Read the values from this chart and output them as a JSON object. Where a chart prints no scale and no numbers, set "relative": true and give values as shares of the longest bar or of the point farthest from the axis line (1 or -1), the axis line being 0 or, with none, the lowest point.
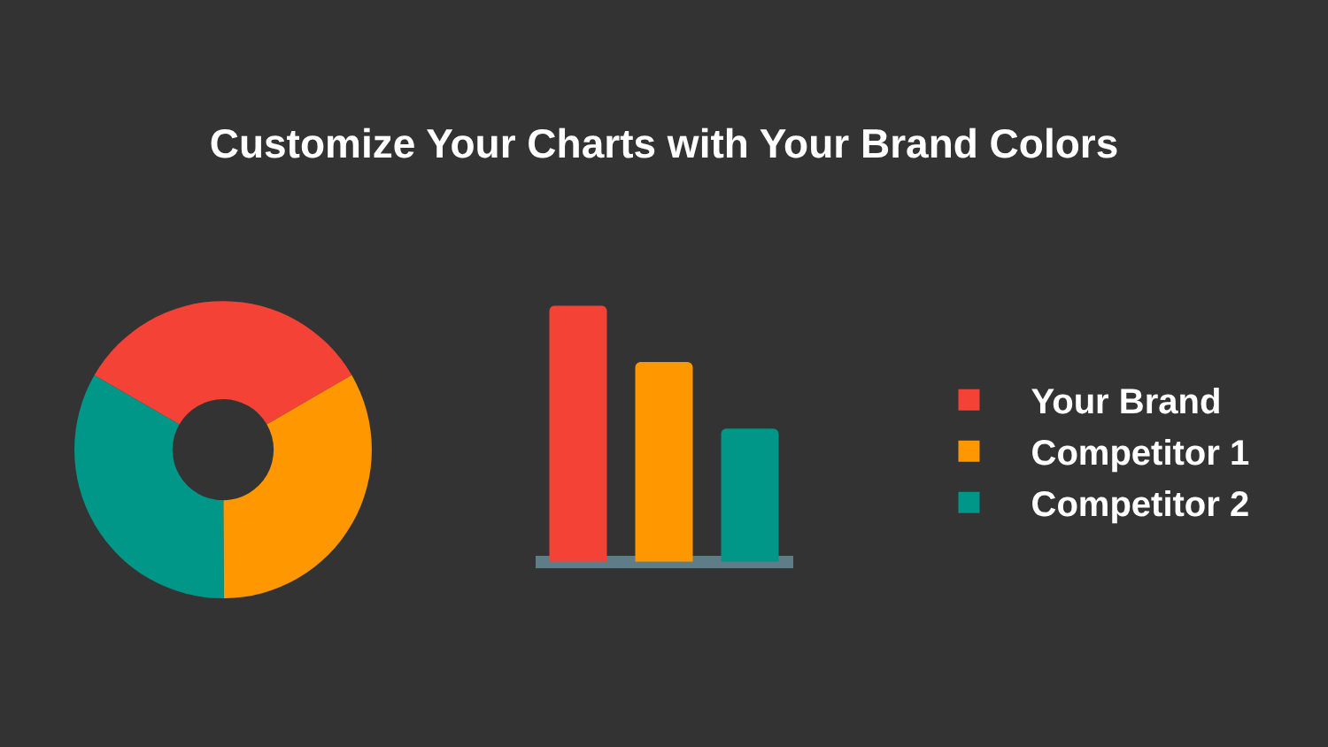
{
  "chart_data": [
    {
      "type": "donut",
      "title": "Customize Your Charts with Your Brand Colors",
      "categories": [
        "Your Brand",
        "Competitor 1",
        "Competitor 2"
      ],
      "values": [
        33.3,
        33.3,
        33.4
      ],
      "colors": [
        "#f44336",
        "#ff9800",
        "#009688"
      ],
      "legend": "right"
    },
    {
      "type": "bar",
      "relative": true,
      "categories": [
        null,
        null,
        null
      ],
      "values": [
        1,
        0.78,
        0.52
      ],
      "colors": [
        "#f44336",
        "#ff9800",
        "#009688"
      ]
    }
  ]
}
